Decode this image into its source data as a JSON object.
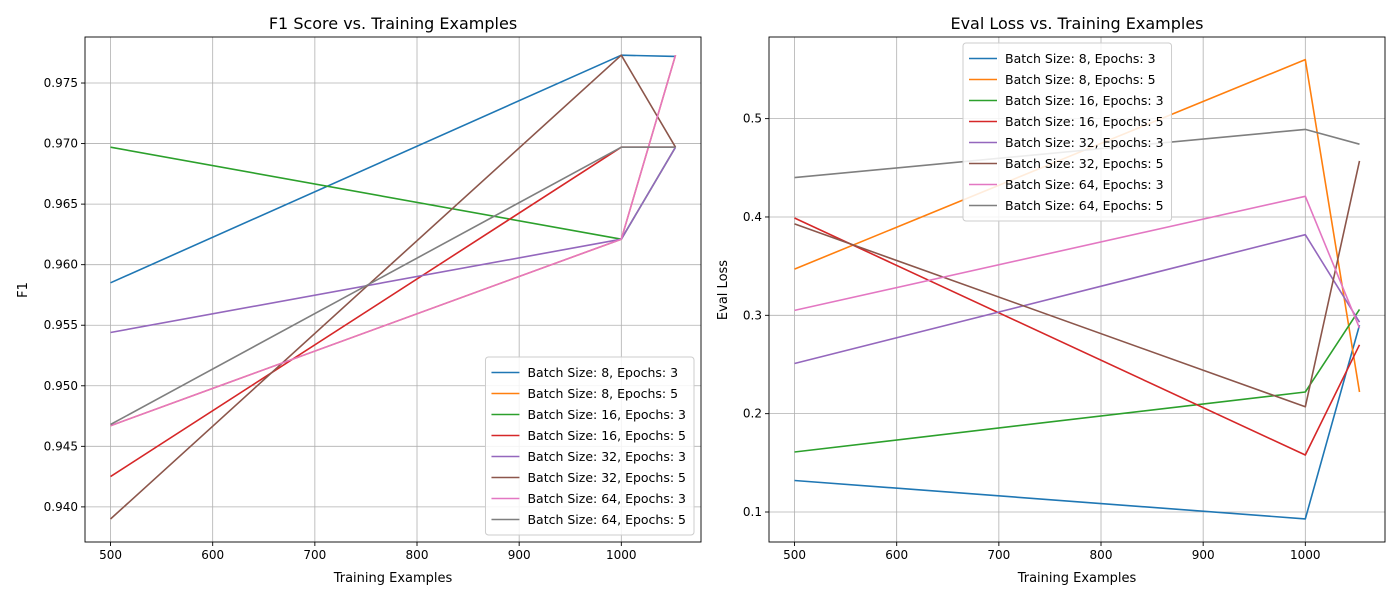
{
  "colors": [
    "#1f77b4",
    "#ff7f0e",
    "#2ca02c",
    "#d62728",
    "#9467bd",
    "#8c564b",
    "#e377c2",
    "#7f7f7f"
  ],
  "chart_data": [
    {
      "type": "line",
      "title": "F1 Score vs. Training Examples",
      "xlabel": "Training Examples",
      "ylabel": "F1",
      "xlim": [
        475,
        1078
      ],
      "ylim": [
        0.9371,
        0.9788
      ],
      "xticks": [
        500,
        600,
        700,
        800,
        900,
        1000
      ],
      "yticks": [
        0.94,
        0.945,
        0.95,
        0.955,
        0.96,
        0.965,
        0.97,
        0.975
      ],
      "grid": true,
      "legend_position": "lower-right",
      "x": [
        500,
        1000,
        1053
      ],
      "series": [
        {
          "name": "Batch Size: 8, Epochs: 3",
          "values": [
            0.9585,
            0.9773,
            0.9772
          ]
        },
        {
          "name": "Batch Size: 8, Epochs: 5",
          "values": [
            0.9467,
            0.9621,
            0.9773
          ]
        },
        {
          "name": "Batch Size: 16, Epochs: 3",
          "values": [
            0.9697,
            0.9621,
            0.9697
          ]
        },
        {
          "name": "Batch Size: 16, Epochs: 5",
          "values": [
            0.9425,
            0.9697,
            0.9697
          ]
        },
        {
          "name": "Batch Size: 32, Epochs: 3",
          "values": [
            0.9544,
            0.9621,
            0.9697
          ]
        },
        {
          "name": "Batch Size: 32, Epochs: 5",
          "values": [
            0.939,
            0.9773,
            0.9697
          ]
        },
        {
          "name": "Batch Size: 64, Epochs: 3",
          "values": [
            0.9467,
            0.9621,
            0.9773
          ]
        },
        {
          "name": "Batch Size: 64, Epochs: 5",
          "values": [
            0.9468,
            0.9697,
            0.9697
          ]
        }
      ]
    },
    {
      "type": "line",
      "title": "Eval Loss vs. Training Examples",
      "xlabel": "Training Examples",
      "ylabel": "Eval Loss",
      "xlim": [
        475,
        1078
      ],
      "ylim": [
        0.0695,
        0.583
      ],
      "xticks": [
        500,
        600,
        700,
        800,
        900,
        1000
      ],
      "yticks": [
        0.1,
        0.2,
        0.3,
        0.4,
        0.5
      ],
      "grid": true,
      "legend_position": "upper-center",
      "x": [
        500,
        1000,
        1053
      ],
      "series": [
        {
          "name": "Batch Size: 8, Epochs: 3",
          "values": [
            0.132,
            0.093,
            0.29
          ]
        },
        {
          "name": "Batch Size: 8, Epochs: 5",
          "values": [
            0.347,
            0.56,
            0.222
          ]
        },
        {
          "name": "Batch Size: 16, Epochs: 3",
          "values": [
            0.161,
            0.222,
            0.306
          ]
        },
        {
          "name": "Batch Size: 16, Epochs: 5",
          "values": [
            0.399,
            0.158,
            0.27
          ]
        },
        {
          "name": "Batch Size: 32, Epochs: 3",
          "values": [
            0.251,
            0.382,
            0.293
          ]
        },
        {
          "name": "Batch Size: 32, Epochs: 5",
          "values": [
            0.393,
            0.207,
            0.457
          ]
        },
        {
          "name": "Batch Size: 64, Epochs: 3",
          "values": [
            0.305,
            0.421,
            0.287
          ]
        },
        {
          "name": "Batch Size: 64, Epochs: 5",
          "values": [
            0.44,
            0.489,
            0.474
          ]
        }
      ]
    }
  ]
}
